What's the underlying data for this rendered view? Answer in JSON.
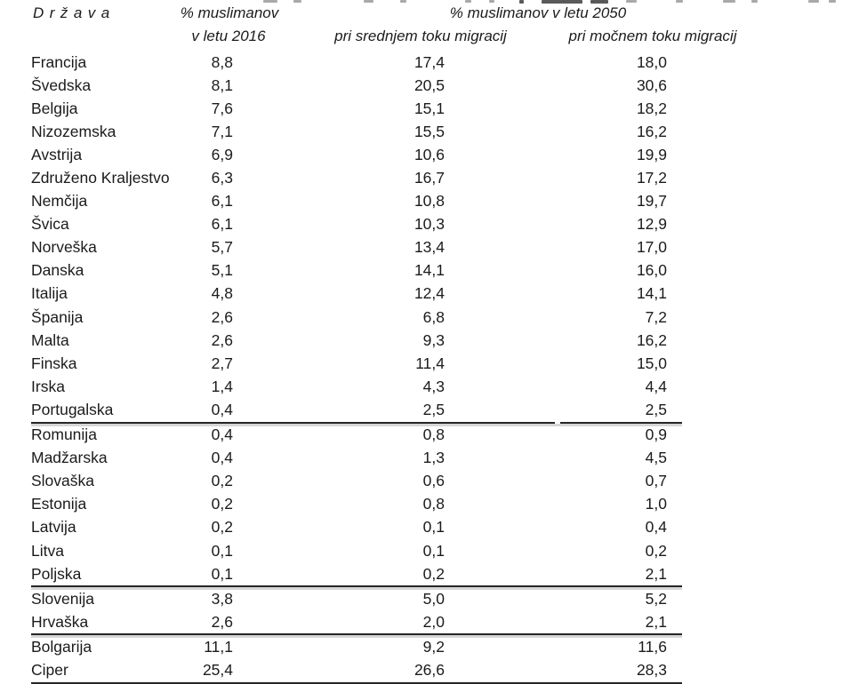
{
  "page": {
    "background": "#ffffff",
    "text_color": "#1b1b1b",
    "rule_color": "#262626"
  },
  "table_header": {
    "country": "Država",
    "col2016_line1": "% muslimanov",
    "col2016_line2": "v letu 2016",
    "col2050_span": "% muslimanov v letu 2050",
    "col2050_medium": "pri srednjem toku migracij",
    "col2050_high": "pri močnem toku migracij"
  },
  "chart_data": {
    "type": "table",
    "decimal_separator": ",",
    "columns": [
      "Država",
      "% muslimanov v letu 2016",
      "% muslimanov v letu 2050 pri srednjem toku migracij",
      "% muslimanov v letu 2050 pri močnem toku migracij"
    ],
    "groups": [
      {
        "rows": [
          {
            "country": "Francija",
            "values": [
              "8,8",
              "17,4",
              "18,0"
            ]
          },
          {
            "country": "Švedska",
            "values": [
              "8,1",
              "20,5",
              "30,6"
            ]
          },
          {
            "country": "Belgija",
            "values": [
              "7,6",
              "15,1",
              "18,2"
            ]
          },
          {
            "country": "Nizozemska",
            "values": [
              "7,1",
              "15,5",
              "16,2"
            ]
          },
          {
            "country": "Avstrija",
            "values": [
              "6,9",
              "10,6",
              "19,9"
            ]
          },
          {
            "country": "Združeno Kraljestvo",
            "values": [
              "6,3",
              "16,7",
              "17,2"
            ]
          },
          {
            "country": "Nemčija",
            "values": [
              "6,1",
              "10,8",
              "19,7"
            ]
          },
          {
            "country": "Švica",
            "values": [
              "6,1",
              "10,3",
              "12,9"
            ]
          },
          {
            "country": "Norveška",
            "values": [
              "5,7",
              "13,4",
              "17,0"
            ]
          },
          {
            "country": "Danska",
            "values": [
              "5,1",
              "14,1",
              "16,0"
            ]
          },
          {
            "country": "Italija",
            "values": [
              "4,8",
              "12,4",
              "14,1"
            ]
          },
          {
            "country": "Španija",
            "values": [
              "2,6",
              "6,8",
              "7,2"
            ]
          },
          {
            "country": "Malta",
            "values": [
              "2,6",
              "9,3",
              "16,2"
            ]
          },
          {
            "country": "Finska",
            "values": [
              "2,7",
              "11,4",
              "15,0"
            ]
          },
          {
            "country": "Irska",
            "values": [
              "1,4",
              "4,3",
              "4,4"
            ]
          },
          {
            "country": "Portugalska",
            "values": [
              "0,4",
              "2,5",
              "2,5"
            ]
          }
        ]
      },
      {
        "rows": [
          {
            "country": "Romunija",
            "values": [
              "0,4",
              "0,8",
              "0,9"
            ]
          },
          {
            "country": "Madžarska",
            "values": [
              "0,4",
              "1,3",
              "4,5"
            ]
          },
          {
            "country": "Slovaška",
            "values": [
              "0,2",
              "0,6",
              "0,7"
            ]
          },
          {
            "country": "Estonija",
            "values": [
              "0,2",
              "0,8",
              "1,0"
            ]
          },
          {
            "country": "Latvija",
            "values": [
              "0,2",
              "0,1",
              "0,4"
            ]
          },
          {
            "country": "Litva",
            "values": [
              "0,1",
              "0,1",
              "0,2"
            ]
          },
          {
            "country": "Poljska",
            "values": [
              "0,1",
              "0,2",
              "2,1"
            ]
          }
        ]
      },
      {
        "rows": [
          {
            "country": "Slovenija",
            "values": [
              "3,8",
              "5,0",
              "5,2"
            ]
          },
          {
            "country": "Hrvaška",
            "values": [
              "2,6",
              "2,0",
              "2,1"
            ]
          }
        ]
      },
      {
        "rows": [
          {
            "country": "Bolgarija",
            "values": [
              "11,1",
              "9,2",
              "11,6"
            ]
          },
          {
            "country": "Ciper",
            "values": [
              "25,4",
              "26,6",
              "28,3"
            ]
          }
        ]
      }
    ]
  }
}
